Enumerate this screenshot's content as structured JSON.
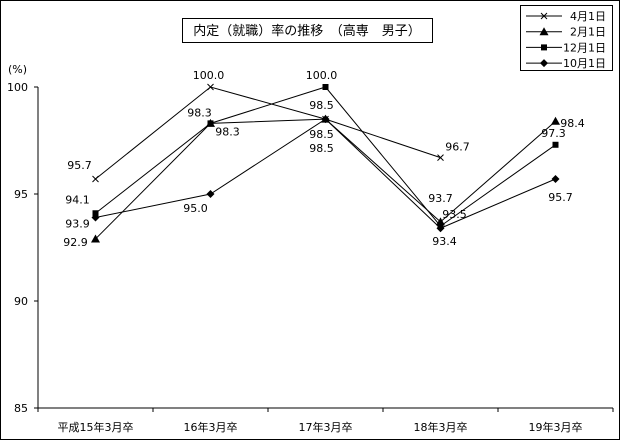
{
  "chart_data": {
    "type": "line",
    "title": "内定（就職）率の推移　（高専　男子）",
    "ylabel": "(%)",
    "categories": [
      "平成15年3月卒",
      "16年3月卒",
      "17年3月卒",
      "18年3月卒",
      "19年3月卒"
    ],
    "ylim": [
      85,
      100
    ],
    "yticks": [
      85,
      90,
      95,
      100
    ],
    "grid": false,
    "legend": "top-right",
    "series": [
      {
        "name": "4月1日",
        "marker": "cross",
        "values": [
          95.7,
          100.0,
          98.5,
          96.7,
          null
        ]
      },
      {
        "name": "2月1日",
        "marker": "triangle",
        "values": [
          92.9,
          98.3,
          98.5,
          93.7,
          98.4
        ]
      },
      {
        "name": "12月1日",
        "marker": "square",
        "values": [
          94.1,
          98.3,
          100.0,
          93.5,
          97.3
        ]
      },
      {
        "name": "10月1日",
        "marker": "diamond",
        "values": [
          93.9,
          95.0,
          98.5,
          93.4,
          95.7
        ]
      }
    ],
    "colors": {
      "lines": "#000000",
      "background": "#ffffff"
    }
  }
}
